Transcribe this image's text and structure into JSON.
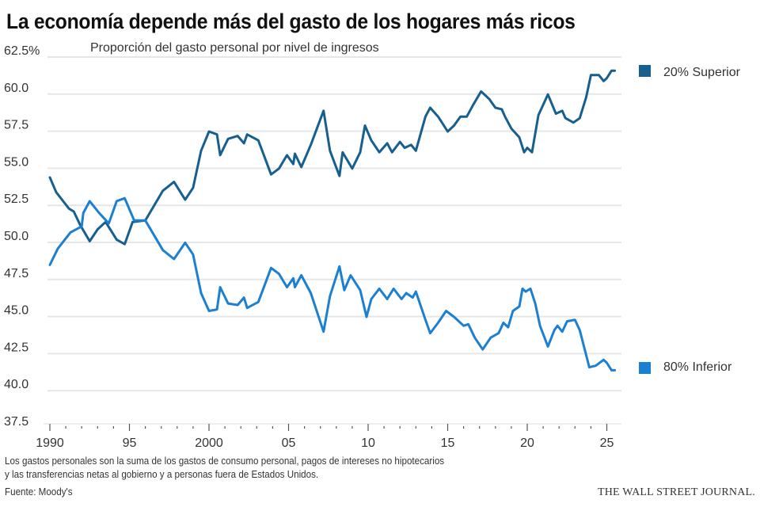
{
  "title": "La economía depende más del gasto de los hogares más ricos",
  "subtitle": "Proporción del gasto personal por nivel de ingresos",
  "notes": [
    "Los gastos personales son la suma de los gastos de consumo personal, pagos de intereses no hipotecarios",
    "y las transferencias netas al gobierno y a personas fuera de Estados Unidos."
  ],
  "source": "Fuente: Moody's",
  "publisher": "THE WALL STREET JOURNAL.",
  "chart_data": {
    "type": "line",
    "title": "Proporción del gasto personal por nivel de ingresos",
    "xlabel": "",
    "ylabel": "",
    "ylim": [
      37.5,
      62.5
    ],
    "xlim": [
      1990,
      2025.5
    ],
    "grid": true,
    "legend_placement": "right",
    "y_ticks": [
      {
        "value": 62.5,
        "label": "62.5%"
      },
      {
        "value": 60.0,
        "label": "60.0"
      },
      {
        "value": 57.5,
        "label": "57.5"
      },
      {
        "value": 55.0,
        "label": "55.0"
      },
      {
        "value": 52.5,
        "label": "52.5"
      },
      {
        "value": 50.0,
        "label": "50.0"
      },
      {
        "value": 47.5,
        "label": "47.5"
      },
      {
        "value": 45.0,
        "label": "45.0"
      },
      {
        "value": 42.5,
        "label": "42.5"
      },
      {
        "value": 40.0,
        "label": "40.0"
      },
      {
        "value": 37.5,
        "label": "37.5"
      }
    ],
    "x_ticks": [
      {
        "value": 1990,
        "label": "1990"
      },
      {
        "value": 1995,
        "label": "95"
      },
      {
        "value": 2000,
        "label": "2000"
      },
      {
        "value": 2005,
        "label": "05"
      },
      {
        "value": 2010,
        "label": "10"
      },
      {
        "value": 2015,
        "label": "15"
      },
      {
        "value": 2020,
        "label": "20"
      },
      {
        "value": 2025,
        "label": "25"
      }
    ],
    "series": [
      {
        "name": "20% Superior",
        "color": "#165f8f",
        "x": [
          1990.0,
          1990.4,
          1991.2,
          1991.5,
          1991.9,
          1992.5,
          1993.0,
          1993.5,
          1994.2,
          1994.7,
          1995.2,
          1996.0,
          1997.1,
          1997.8,
          1998.5,
          1999.0,
          1999.5,
          2000.0,
          2000.5,
          2000.7,
          2001.2,
          2001.8,
          2002.2,
          2002.4,
          2003.1,
          2003.9,
          2004.4,
          2004.9,
          2005.3,
          2005.4,
          2005.8,
          2006.4,
          2007.2,
          2007.6,
          2008.2,
          2008.4,
          2009.0,
          2009.5,
          2009.8,
          2010.2,
          2010.7,
          2011.2,
          2011.5,
          2012.0,
          2012.3,
          2012.7,
          2013.0,
          2013.6,
          2013.9,
          2014.4,
          2015.0,
          2015.4,
          2015.8,
          2016.2,
          2016.6,
          2017.1,
          2017.6,
          2018.0,
          2018.4,
          2018.6,
          2019.0,
          2019.5,
          2019.8,
          2020.0,
          2020.3,
          2020.7,
          2021.3,
          2021.8,
          2022.2,
          2022.4,
          2022.9,
          2023.3,
          2023.7,
          2024.0,
          2024.5,
          2024.8,
          2025.0,
          2025.3,
          2025.5
        ],
        "y": [
          53.9,
          52.9,
          51.8,
          51.6,
          50.7,
          49.6,
          50.4,
          50.9,
          49.7,
          49.4,
          50.9,
          51.0,
          53.0,
          53.6,
          52.4,
          53.2,
          55.7,
          57.0,
          56.8,
          55.4,
          56.5,
          56.7,
          56.2,
          56.8,
          56.4,
          54.1,
          54.5,
          55.4,
          54.8,
          55.5,
          54.6,
          56.1,
          58.4,
          55.7,
          54.0,
          55.6,
          54.5,
          55.6,
          57.4,
          56.4,
          55.6,
          56.2,
          55.6,
          56.3,
          55.9,
          56.1,
          55.7,
          58.0,
          58.6,
          58.0,
          57.0,
          57.4,
          58.0,
          58.0,
          58.8,
          59.7,
          59.2,
          58.6,
          58.5,
          58.0,
          57.2,
          56.6,
          55.6,
          55.9,
          55.6,
          58.1,
          59.5,
          58.2,
          58.4,
          57.9,
          57.6,
          57.9,
          59.3,
          60.8,
          60.8,
          60.4,
          60.6,
          61.1,
          61.1
        ]
      },
      {
        "name": "80% Inferior",
        "color": "#1b80d2",
        "x": [
          1990.0,
          1990.5,
          1991.3,
          1992.0,
          1992.1,
          1992.5,
          1993.1,
          1993.7,
          1994.2,
          1994.7,
          1995.3,
          1996.0,
          1997.1,
          1997.8,
          1998.5,
          1999.0,
          1999.5,
          2000.0,
          2000.5,
          2000.7,
          2001.2,
          2001.8,
          2002.2,
          2002.4,
          2003.1,
          2003.9,
          2004.4,
          2004.9,
          2005.3,
          2005.4,
          2005.8,
          2006.4,
          2007.2,
          2007.6,
          2008.2,
          2008.5,
          2008.9,
          2009.5,
          2009.9,
          2010.2,
          2010.7,
          2011.2,
          2011.6,
          2012.1,
          2012.4,
          2012.8,
          2013.0,
          2013.6,
          2013.9,
          2014.4,
          2014.9,
          2015.4,
          2016.0,
          2016.3,
          2016.7,
          2017.2,
          2017.7,
          2018.2,
          2018.5,
          2018.8,
          2019.1,
          2019.5,
          2019.7,
          2019.9,
          2020.2,
          2020.5,
          2020.8,
          2021.3,
          2021.7,
          2021.9,
          2022.2,
          2022.5,
          2023.0,
          2023.3,
          2023.9,
          2024.3,
          2024.8,
          2025.0,
          2025.3,
          2025.5
        ],
        "y": [
          48.0,
          49.1,
          50.2,
          50.6,
          51.5,
          52.3,
          51.5,
          50.8,
          52.3,
          52.5,
          51.0,
          51.0,
          49.0,
          48.4,
          49.5,
          48.7,
          46.1,
          44.9,
          45.0,
          46.5,
          45.4,
          45.3,
          45.8,
          45.1,
          45.5,
          47.8,
          47.4,
          46.5,
          47.1,
          46.5,
          47.3,
          46.1,
          43.5,
          45.9,
          47.9,
          46.3,
          47.3,
          46.3,
          44.5,
          45.7,
          46.4,
          45.7,
          46.4,
          45.7,
          46.1,
          45.8,
          46.2,
          44.3,
          43.4,
          44.1,
          44.9,
          44.5,
          43.9,
          44.0,
          43.1,
          42.3,
          43.1,
          43.4,
          44.1,
          43.8,
          44.9,
          45.2,
          46.4,
          46.2,
          46.4,
          45.4,
          43.9,
          42.5,
          43.6,
          43.9,
          43.5,
          44.2,
          44.3,
          43.6,
          41.1,
          41.2,
          41.6,
          41.4,
          40.9,
          40.9
        ]
      }
    ]
  }
}
